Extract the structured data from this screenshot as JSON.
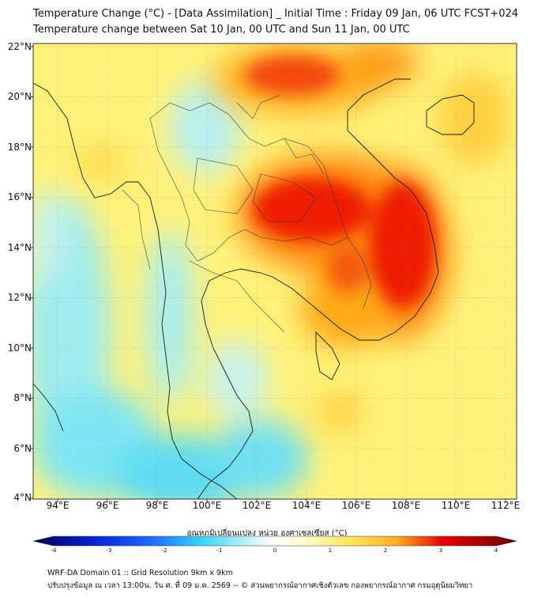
{
  "header": {
    "title_line1": "Temperature Change (°C) - [Data Assimilation] _ Initial Time : Friday 09 Jan, 06 UTC FCST+024",
    "title_line2": "Temperature change between Sat 10 Jan, 00 UTC and Sun 11 Jan, 00 UTC"
  },
  "map": {
    "lat_labels": [
      "22°N",
      "20°N",
      "18°N",
      "16°N",
      "14°N",
      "12°N",
      "10°N",
      "8°N",
      "6°N",
      "4°N"
    ],
    "lon_labels": [
      "94°E",
      "96°E",
      "98°E",
      "100°E",
      "102°E",
      "104°E",
      "106°E",
      "108°E",
      "110°E",
      "112°E"
    ],
    "lat_range": [
      4,
      22
    ],
    "lon_range": [
      93,
      112.5
    ]
  },
  "colorbar": {
    "title": "อุณหภูมิเปลี่ยนแปลง หน่วย องศาเซลเซียส (°C)",
    "range": [
      -4,
      4
    ],
    "ticks": [
      "-4",
      "-3",
      "-2",
      "-1",
      "0",
      "1",
      "2",
      "3",
      "4"
    ],
    "colors": {
      "cold_deep": "#00005a",
      "cold": "#1f6fff",
      "cool": "#36d8f5",
      "neutral": "#ffffff",
      "warm": "#ffe860",
      "hot": "#ff8a10",
      "very_hot": "#e60000",
      "extreme": "#6a0000"
    }
  },
  "footer": {
    "line1": "WRF-DA Domain 01 :: Grid Resolution 9km x 9km",
    "line2": "ปรับปรุงข้อมูล ณ เวลา 13:00น. วัน ศ. ที่ 09 ม.ค. 2569 -- © ส่วนพยากรณ์อากาศเชิงตัวเลข กองพยากรณ์อากาศ กรมอุตุนิยมวิทยา"
  }
}
